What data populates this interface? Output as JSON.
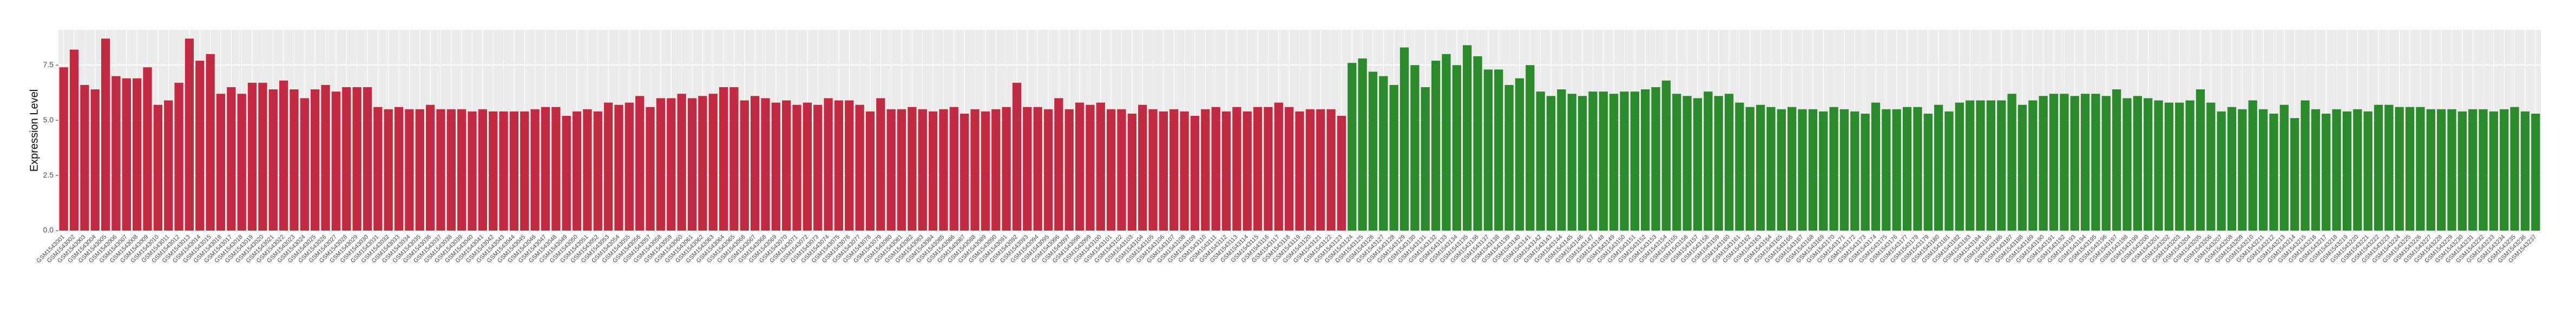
{
  "chart_data": {
    "type": "bar",
    "y_label": "Expression Level",
    "categories": [
      "GSM1543001",
      "GSM1543002",
      "GSM1543003",
      "GSM1543004",
      "GSM1543005",
      "GSM1543006",
      "GSM1543007",
      "GSM1543008",
      "GSM1543009",
      "GSM1543010",
      "GSM1543011",
      "GSM1543012",
      "GSM1543013",
      "GSM1543014",
      "GSM1543015",
      "GSM1543016",
      "GSM1543017",
      "GSM1543018",
      "GSM1543019",
      "GSM1543020",
      "GSM1543021",
      "GSM1543022",
      "GSM1543023",
      "GSM1543024",
      "GSM1543025",
      "GSM1543026",
      "GSM1543027",
      "GSM1543028",
      "GSM1543029",
      "GSM1543030",
      "GSM1543031",
      "GSM1543032",
      "GSM1543033",
      "GSM1543034",
      "GSM1543035",
      "GSM1543036",
      "GSM1543037",
      "GSM1543038",
      "GSM1543039",
      "GSM1543040",
      "GSM1543041",
      "GSM1543042",
      "GSM1543043",
      "GSM1543044",
      "GSM1543045",
      "GSM1543046",
      "GSM1543047",
      "GSM1543048",
      "GSM1543049",
      "GSM1543050",
      "GSM1543051",
      "GSM1543052",
      "GSM1543053",
      "GSM1543054",
      "GSM1543055",
      "GSM1543056",
      "GSM1543057",
      "GSM1543058",
      "GSM1543059",
      "GSM1543060",
      "GSM1543061",
      "GSM1543062",
      "GSM1543063",
      "GSM1543064",
      "GSM1543065",
      "GSM1543066",
      "GSM1543067",
      "GSM1543068",
      "GSM1543069",
      "GSM1543070",
      "GSM1543071",
      "GSM1543072",
      "GSM1543073",
      "GSM1543074",
      "GSM1543075",
      "GSM1543076",
      "GSM1543077",
      "GSM1543078",
      "GSM1543079",
      "GSM1543080",
      "GSM1543081",
      "GSM1543082",
      "GSM1543083",
      "GSM1543084",
      "GSM1543085",
      "GSM1543086",
      "GSM1543087",
      "GSM1543088",
      "GSM1543089",
      "GSM1543090",
      "GSM1543091",
      "GSM1543092",
      "GSM1543093",
      "GSM1543094",
      "GSM1543095",
      "GSM1543096",
      "GSM1543097",
      "GSM1543098",
      "GSM1543099",
      "GSM1543100",
      "GSM1543101",
      "GSM1543102",
      "GSM1543103",
      "GSM1543104",
      "GSM1543105",
      "GSM1543106",
      "GSM1543107",
      "GSM1543108",
      "GSM1543109",
      "GSM1543110",
      "GSM1543111",
      "GSM1543112",
      "GSM1543113",
      "GSM1543114",
      "GSM1543115",
      "GSM1543116",
      "GSM1543117",
      "GSM1543118",
      "GSM1543119",
      "GSM1543120",
      "GSM1543121",
      "GSM1543122",
      "GSM1543123",
      "GSM1543124",
      "GSM1543125",
      "GSM1543126",
      "GSM1543127",
      "GSM1543128",
      "GSM1543129",
      "GSM1543130",
      "GSM1543131",
      "GSM1543132",
      "GSM1543133",
      "GSM1543134",
      "GSM1543135",
      "GSM1543136",
      "GSM1543137",
      "GSM1543138",
      "GSM1543139",
      "GSM1543140",
      "GSM1543141",
      "GSM1543142",
      "GSM1543143",
      "GSM1543144",
      "GSM1543145",
      "GSM1543146",
      "GSM1543147",
      "GSM1543148",
      "GSM1543149",
      "GSM1543150",
      "GSM1543151",
      "GSM1543152",
      "GSM1543153",
      "GSM1543154",
      "GSM1543155",
      "GSM1543156",
      "GSM1543157",
      "GSM1543158",
      "GSM1543159",
      "GSM1543160",
      "GSM1543161",
      "GSM1543162",
      "GSM1543163",
      "GSM1543164",
      "GSM1543165",
      "GSM1543166",
      "GSM1543167",
      "GSM1543168",
      "GSM1543169",
      "GSM1543170",
      "GSM1543171",
      "GSM1543172",
      "GSM1543173",
      "GSM1543174",
      "GSM1543175",
      "GSM1543176",
      "GSM1543177",
      "GSM1543178",
      "GSM1543179",
      "GSM1543180",
      "GSM1543181",
      "GSM1543182",
      "GSM1543183",
      "GSM1543184",
      "GSM1543185",
      "GSM1543186",
      "GSM1543187",
      "GSM1543188",
      "GSM1543189",
      "GSM1543190",
      "GSM1543191",
      "GSM1543192",
      "GSM1543193",
      "GSM1543194",
      "GSM1543195",
      "GSM1543196",
      "GSM1543197",
      "GSM1543198",
      "GSM1543199",
      "GSM1543200",
      "GSM1543201",
      "GSM1543202",
      "GSM1543203",
      "GSM1543204",
      "GSM1543205",
      "GSM1543206",
      "GSM1543207",
      "GSM1543208",
      "GSM1543209",
      "GSM1543210",
      "GSM1543211",
      "GSM1543212",
      "GSM1543213",
      "GSM1543214",
      "GSM1543215",
      "GSM1543216",
      "GSM1543217",
      "GSM1543218",
      "GSM1543219",
      "GSM1543220",
      "GSM1543221",
      "GSM1543222",
      "GSM1543223",
      "GSM1543224",
      "GSM1543225",
      "GSM1543226",
      "GSM1543227",
      "GSM1543228",
      "GSM1543229",
      "GSM1543230",
      "GSM1543231",
      "GSM1543232",
      "GSM1543233",
      "GSM1543234",
      "GSM1543235",
      "GSM1543236",
      "GSM1543237"
    ],
    "values": [
      7.4,
      8.2,
      6.6,
      6.4,
      8.7,
      7.0,
      6.9,
      6.9,
      7.4,
      5.7,
      5.9,
      6.7,
      8.7,
      7.7,
      8.0,
      6.2,
      6.5,
      6.2,
      6.7,
      6.7,
      6.4,
      6.8,
      6.4,
      6.0,
      6.4,
      6.6,
      6.3,
      6.5,
      6.5,
      6.5,
      5.6,
      5.5,
      5.6,
      5.5,
      5.5,
      5.7,
      5.5,
      5.5,
      5.5,
      5.4,
      5.5,
      5.4,
      5.4,
      5.4,
      5.4,
      5.5,
      5.6,
      5.6,
      5.2,
      5.4,
      5.5,
      5.4,
      5.8,
      5.7,
      5.8,
      6.1,
      5.6,
      6.0,
      6.0,
      6.2,
      6.0,
      6.1,
      6.2,
      6.5,
      6.5,
      5.9,
      6.1,
      6.0,
      5.8,
      5.9,
      5.7,
      5.8,
      5.7,
      6.0,
      5.9,
      5.9,
      5.7,
      5.4,
      6.0,
      5.5,
      5.5,
      5.6,
      5.5,
      5.4,
      5.5,
      5.6,
      5.3,
      5.5,
      5.4,
      5.5,
      5.6,
      6.7,
      5.6,
      5.6,
      5.5,
      6.0,
      5.5,
      5.8,
      5.7,
      5.8,
      5.5,
      5.5,
      5.3,
      5.7,
      5.5,
      5.4,
      5.5,
      5.4,
      5.2,
      5.5,
      5.6,
      5.4,
      5.6,
      5.4,
      5.6,
      5.6,
      5.8,
      5.6,
      5.4,
      5.5,
      5.5,
      5.5,
      5.2,
      7.6,
      7.8,
      7.2,
      7.0,
      6.6,
      8.3,
      7.5,
      6.5,
      7.7,
      8.0,
      7.5,
      8.4,
      7.9,
      7.3,
      7.3,
      6.6,
      6.9,
      7.5,
      6.3,
      6.1,
      6.4,
      6.2,
      6.1,
      6.3,
      6.3,
      6.2,
      6.3,
      6.3,
      6.4,
      6.5,
      6.8,
      6.2,
      6.1,
      6.0,
      6.3,
      6.1,
      6.2,
      5.8,
      5.6,
      5.7,
      5.6,
      5.5,
      5.6,
      5.5,
      5.5,
      5.4,
      5.6,
      5.5,
      5.4,
      5.3,
      5.8,
      5.5,
      5.5,
      5.6,
      5.6,
      5.3,
      5.7,
      5.4,
      5.8,
      5.9,
      5.9,
      5.9,
      5.9,
      6.2,
      5.7,
      5.9,
      6.1,
      6.2,
      6.2,
      6.1,
      6.2,
      6.2,
      6.1,
      6.4,
      6.0,
      6.1,
      6.0,
      5.9,
      5.8,
      5.8,
      5.9,
      6.4,
      5.8,
      5.4,
      5.6,
      5.5,
      5.9,
      5.5,
      5.3,
      5.7,
      5.1,
      5.9,
      5.5,
      5.3,
      5.5,
      5.4,
      5.5,
      5.4,
      5.7,
      5.7,
      5.6,
      5.6,
      5.6,
      5.5,
      5.5,
      5.5,
      5.4,
      5.5,
      5.5,
      5.4,
      5.5,
      5.6,
      5.4,
      5.3
    ],
    "colors": [
      "#c12a40",
      "#c12a40",
      "#c12a40",
      "#c12a40",
      "#c12a40",
      "#c12a40",
      "#c12a40",
      "#c12a40",
      "#c12a40",
      "#c12a40",
      "#c12a40",
      "#c12a40",
      "#c12a40",
      "#c12a40",
      "#c12a40",
      "#c12a40",
      "#c12a40",
      "#c12a40",
      "#c12a40",
      "#c12a40",
      "#c12a40",
      "#c12a40",
      "#c12a40",
      "#c12a40",
      "#c12a40",
      "#c12a40",
      "#c12a40",
      "#c12a40",
      "#c12a40",
      "#c12a40",
      "#c12a40",
      "#c12a40",
      "#c12a40",
      "#c12a40",
      "#c12a40",
      "#c12a40",
      "#c12a40",
      "#c12a40",
      "#c12a40",
      "#c12a40",
      "#c12a40",
      "#c12a40",
      "#c12a40",
      "#c12a40",
      "#c12a40",
      "#c12a40",
      "#c12a40",
      "#c12a40",
      "#c12a40",
      "#c12a40",
      "#c12a40",
      "#c12a40",
      "#c12a40",
      "#c12a40",
      "#c12a40",
      "#c12a40",
      "#c12a40",
      "#c12a40",
      "#c12a40",
      "#c12a40",
      "#c12a40",
      "#c12a40",
      "#c12a40",
      "#c12a40",
      "#c12a40",
      "#c12a40",
      "#c12a40",
      "#c12a40",
      "#c12a40",
      "#c12a40",
      "#c12a40",
      "#c12a40",
      "#c12a40",
      "#c12a40",
      "#c12a40",
      "#c12a40",
      "#c12a40",
      "#c12a40",
      "#c12a40",
      "#c12a40",
      "#c12a40",
      "#c12a40",
      "#c12a40",
      "#c12a40",
      "#c12a40",
      "#c12a40",
      "#c12a40",
      "#c12a40",
      "#c12a40",
      "#c12a40",
      "#c12a40",
      "#c12a40",
      "#c12a40",
      "#c12a40",
      "#c12a40",
      "#c12a40",
      "#c12a40",
      "#c12a40",
      "#c12a40",
      "#c12a40",
      "#c12a40",
      "#c12a40",
      "#c12a40",
      "#c12a40",
      "#c12a40",
      "#c12a40",
      "#c12a40",
      "#c12a40",
      "#c12a40",
      "#c12a40",
      "#c12a40",
      "#c12a40",
      "#c12a40",
      "#c12a40",
      "#c12a40",
      "#c12a40",
      "#c12a40",
      "#c12a40",
      "#c12a40",
      "#c12a40",
      "#c12a40",
      "#c12a40",
      "#c12a40",
      "#2b8a2b",
      "#2b8a2b",
      "#2b8a2b",
      "#2b8a2b",
      "#2b8a2b",
      "#2b8a2b",
      "#2b8a2b",
      "#2b8a2b",
      "#2b8a2b",
      "#2b8a2b",
      "#2b8a2b",
      "#2b8a2b",
      "#2b8a2b",
      "#2b8a2b",
      "#2b8a2b",
      "#2b8a2b",
      "#2b8a2b",
      "#2b8a2b",
      "#2b8a2b",
      "#2b8a2b",
      "#2b8a2b",
      "#2b8a2b",
      "#2b8a2b",
      "#2b8a2b",
      "#2b8a2b",
      "#2b8a2b",
      "#2b8a2b",
      "#2b8a2b",
      "#2b8a2b",
      "#2b8a2b",
      "#2b8a2b",
      "#2b8a2b",
      "#2b8a2b",
      "#2b8a2b",
      "#2b8a2b",
      "#2b8a2b",
      "#2b8a2b",
      "#2b8a2b",
      "#2b8a2b",
      "#2b8a2b",
      "#2b8a2b",
      "#2b8a2b",
      "#2b8a2b",
      "#2b8a2b",
      "#2b8a2b",
      "#2b8a2b",
      "#2b8a2b",
      "#2b8a2b",
      "#2b8a2b",
      "#2b8a2b",
      "#2b8a2b",
      "#2b8a2b",
      "#2b8a2b",
      "#2b8a2b",
      "#2b8a2b",
      "#2b8a2b",
      "#2b8a2b",
      "#2b8a2b",
      "#2b8a2b",
      "#2b8a2b",
      "#2b8a2b",
      "#2b8a2b",
      "#2b8a2b",
      "#2b8a2b",
      "#2b8a2b",
      "#2b8a2b",
      "#2b8a2b",
      "#2b8a2b",
      "#2b8a2b",
      "#2b8a2b",
      "#2b8a2b",
      "#2b8a2b",
      "#2b8a2b",
      "#2b8a2b",
      "#2b8a2b",
      "#2b8a2b",
      "#2b8a2b",
      "#2b8a2b",
      "#2b8a2b",
      "#2b8a2b",
      "#2b8a2b",
      "#2b8a2b",
      "#2b8a2b",
      "#2b8a2b",
      "#2b8a2b",
      "#2b8a2b",
      "#2b8a2b",
      "#2b8a2b",
      "#2b8a2b",
      "#2b8a2b",
      "#2b8a2b",
      "#2b8a2b",
      "#2b8a2b",
      "#2b8a2b",
      "#2b8a2b",
      "#2b8a2b",
      "#2b8a2b",
      "#2b8a2b",
      "#2b8a2b",
      "#2b8a2b",
      "#2b8a2b",
      "#2b8a2b",
      "#2b8a2b",
      "#2b8a2b",
      "#2b8a2b",
      "#2b8a2b",
      "#2b8a2b",
      "#2b8a2b",
      "#2b8a2b",
      "#2b8a2b",
      "#2b8a2b",
      "#2b8a2b",
      "#2b8a2b",
      "#2b8a2b"
    ],
    "ylim": [
      0,
      9.1
    ],
    "yticks": [
      {
        "value": 0,
        "label": "0.0"
      },
      2.5,
      {
        "value": 5,
        "label": "5.0"
      },
      7.5
    ],
    "grid": true
  }
}
